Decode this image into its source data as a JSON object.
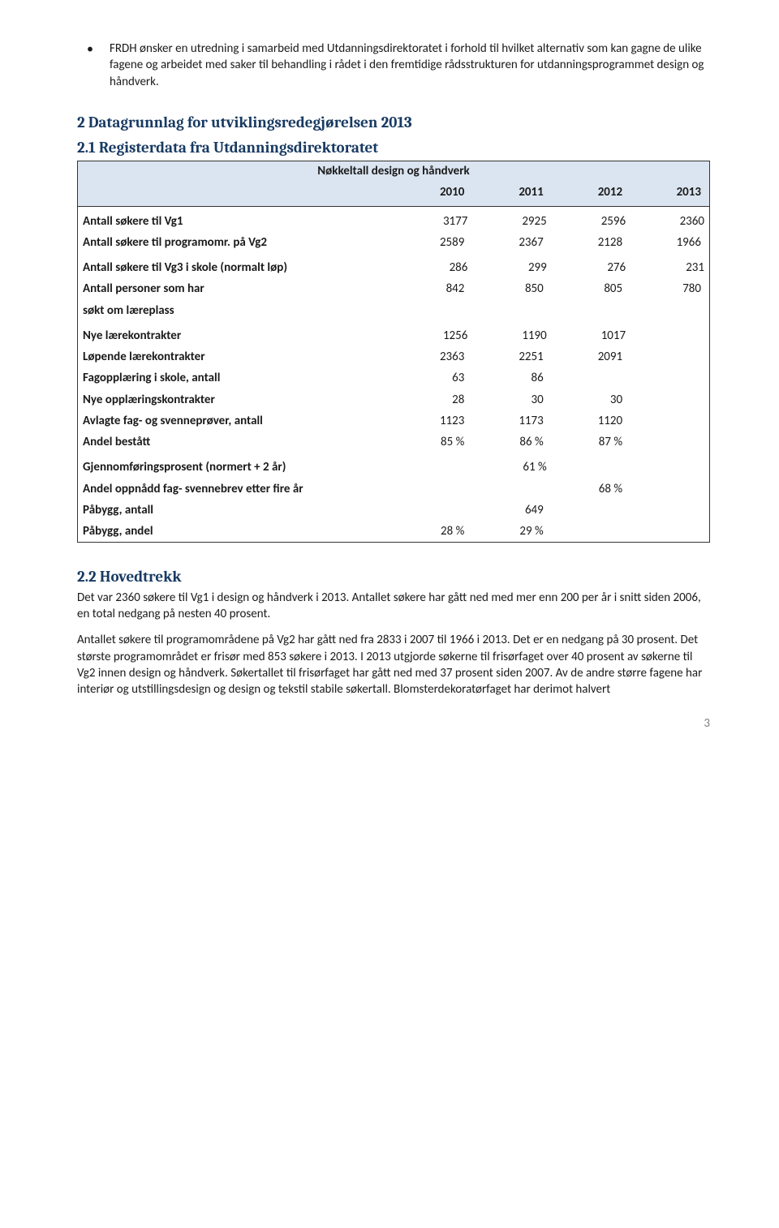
{
  "bullet": {
    "text": "FRDH ønsker en utredning i samarbeid med Utdanningsdirektoratet i forhold til hvilket alternativ som kan gagne de ulike fagene og arbeidet med saker til behandling i rådet i den fremtidige rådsstrukturen for utdanningsprogrammet design og håndverk."
  },
  "section2": {
    "heading": "2   Datagrunnlag for utviklingsredegjørelsen 2013"
  },
  "section21": {
    "heading": "2.1   Registerdata fra Utdanningsdirektoratet"
  },
  "table": {
    "title": "Nøkkeltall design og håndverk",
    "years": [
      "2010",
      "2011",
      "2012",
      "2013"
    ],
    "rows": [
      {
        "label": "Antall søkere til Vg1",
        "vals": [
          "3177",
          "2925",
          "2596",
          "2360"
        ]
      },
      {
        "label": "Antall søkere til programomr. på Vg2",
        "vals": [
          "2589",
          "2367",
          "2128",
          "1966"
        ]
      },
      {
        "label": "Antall søkere til Vg3 i skole (normalt løp)",
        "vals": [
          "286",
          "299",
          "276",
          "231"
        ]
      },
      {
        "label": "Antall personer som har",
        "vals": [
          "842",
          "850",
          "805",
          "780"
        ]
      },
      {
        "label": "søkt om læreplass",
        "vals": [
          "",
          "",
          "",
          ""
        ]
      },
      {
        "label": "Nye lærekontrakter",
        "vals": [
          "1256",
          "1190",
          "1017",
          ""
        ]
      },
      {
        "label": "Løpende lærekontrakter",
        "vals": [
          "2363",
          "2251",
          "2091",
          ""
        ]
      },
      {
        "label": "Fagopplæring i skole, antall",
        "vals": [
          "63",
          "86",
          "",
          ""
        ]
      },
      {
        "label": "Nye opplæringskontrakter",
        "vals": [
          "28",
          "30",
          "30",
          ""
        ]
      },
      {
        "label": "Avlagte fag- og svenneprøver, antall",
        "vals": [
          "1123",
          "1173",
          "1120",
          ""
        ]
      },
      {
        "label": "Andel bestått",
        "vals": [
          "85 %",
          "86 %",
          "87 %",
          ""
        ]
      },
      {
        "label": "Gjennomføringsprosent (normert  + 2 år)",
        "vals": [
          "",
          "61 %",
          "",
          ""
        ]
      },
      {
        "label": "Andel oppnådd fag- svennebrev etter fire år",
        "vals": [
          "",
          "",
          "68 %",
          ""
        ]
      },
      {
        "label": "Påbygg, antall",
        "vals": [
          "",
          "649",
          "",
          ""
        ]
      },
      {
        "label": "Påbygg, andel",
        "vals": [
          "28 %",
          "29 %",
          "",
          ""
        ]
      }
    ]
  },
  "section22": {
    "heading": "2.2  Hovedtrekk",
    "p1": "Det var 2360 søkere til Vg1 i design og håndverk i 2013. Antallet søkere har gått ned med mer enn 200 per år i snitt siden 2006, en total nedgang på nesten 40 prosent.",
    "p2": "Antallet søkere til programområdene på Vg2 har gått ned fra 2833 i 2007 til 1966 i 2013. Det er en nedgang på 30 prosent. Det største programområdet er frisør med 853 søkere i 2013. I 2013 utgjorde søkerne til frisørfaget over 40 prosent av søkerne til Vg2 innen design og håndverk. Søkertallet til frisørfaget har gått ned med 37 prosent siden 2007. Av de andre større fagene har interiør og utstillingsdesign og design og tekstil stabile søkertall. Blomsterdekoratørfaget har derimot halvert"
  },
  "pagenum": "3"
}
